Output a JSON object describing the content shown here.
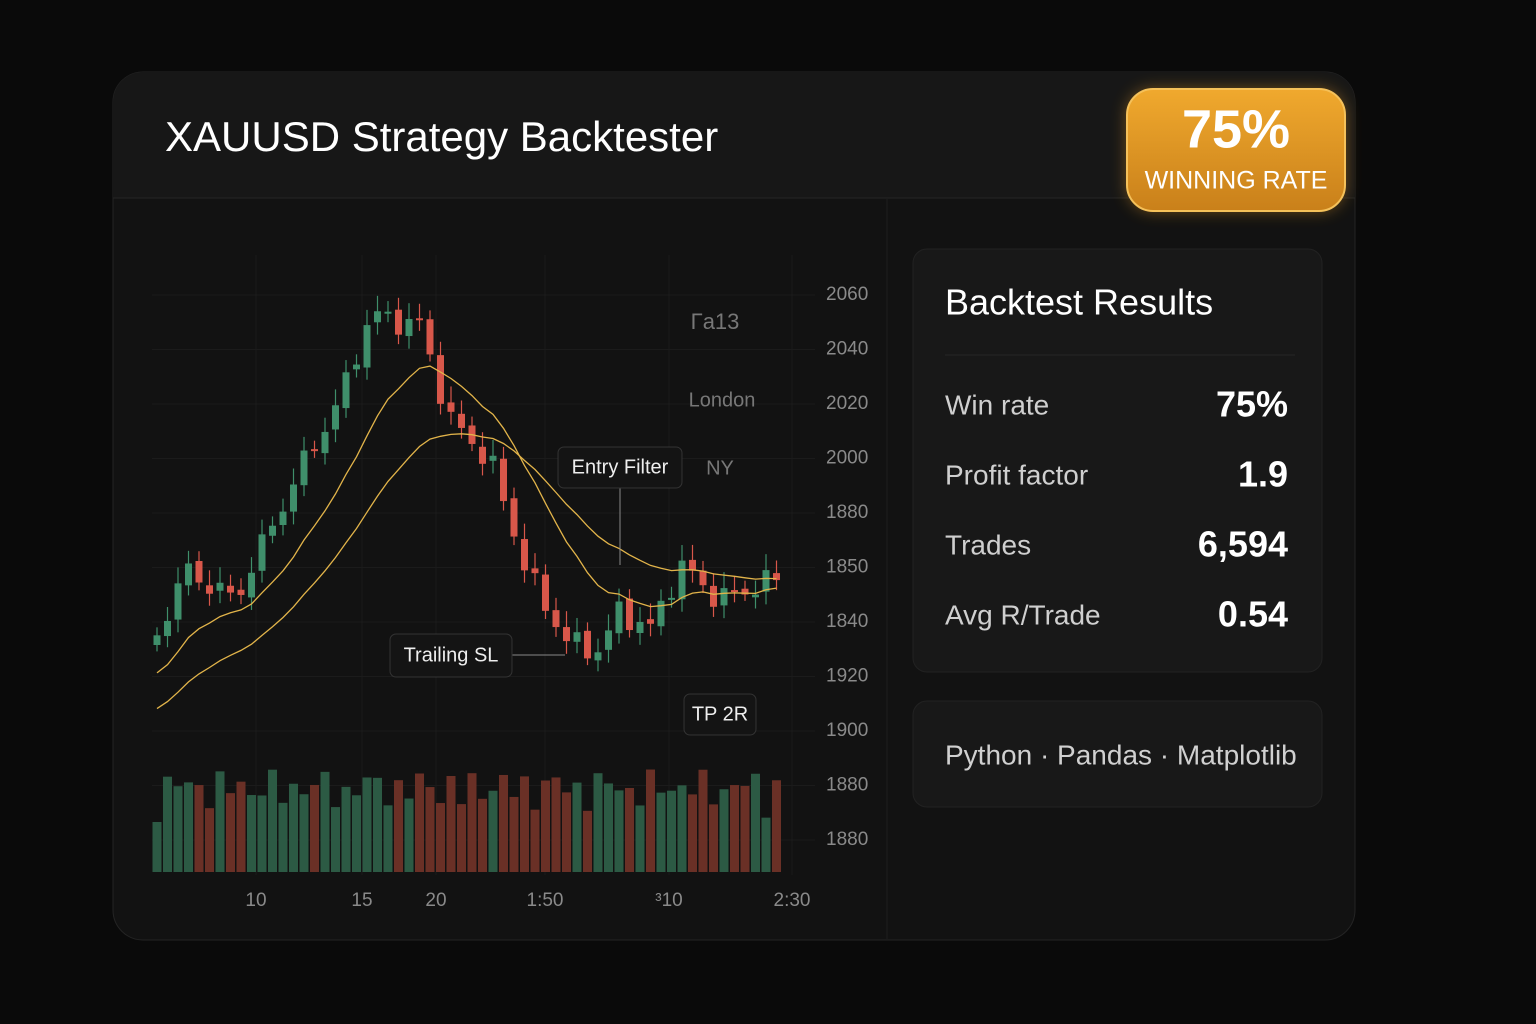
{
  "header": {
    "title": "XAUUSD Strategy Backtester"
  },
  "badge": {
    "value": "75%",
    "label": "WINNING RATE"
  },
  "chart": {
    "y_labels": [
      "2060",
      "2040",
      "2020",
      "2000",
      "1880",
      "1850",
      "1840",
      "1920",
      "1900",
      "1880",
      "1880"
    ],
    "x_labels": [
      "10",
      "15",
      "20",
      "1:50",
      "³10",
      "2:30"
    ],
    "annotations": [
      "Γa13",
      "London",
      "NY",
      "Entry Filter",
      "Trailing SL",
      "TP 2R"
    ]
  },
  "results": {
    "title": "Backtest Results",
    "rows": [
      {
        "label": "Win rate",
        "value": "75%"
      },
      {
        "label": "Profit factor",
        "value": "1.9"
      },
      {
        "label": "Trades",
        "value": "6,594"
      },
      {
        "label": "Avg R/Trade",
        "value": "0.54"
      }
    ]
  },
  "tech_stack": "Python · Pandas · Matplotlib"
}
